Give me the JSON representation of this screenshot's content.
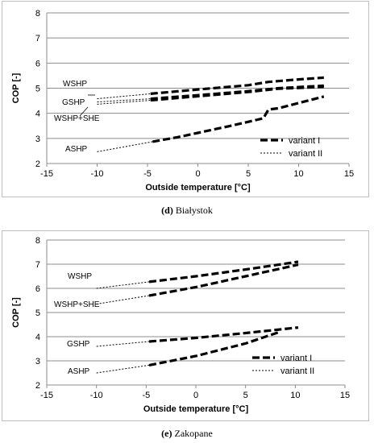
{
  "chart_data": [
    {
      "type": "line",
      "panel_letter": "(d)",
      "caption": "Białystok",
      "xlabel": "Outside temperature [°C]",
      "ylabel": "COP [-]",
      "xlim": [
        -15,
        15
      ],
      "ylim": [
        2,
        8
      ],
      "x_ticks": [
        -15,
        -10,
        -5,
        0,
        5,
        10,
        15
      ],
      "y_ticks": [
        2,
        3,
        4,
        5,
        6,
        7,
        8
      ],
      "grid": "horizontal",
      "legend": {
        "position": "bottom-right",
        "entries": [
          "variant I",
          "variant II"
        ]
      },
      "series": [
        {
          "name": "WSHP",
          "variant_I": [
            [
              -4.7,
              4.78
            ],
            [
              0,
              4.95
            ],
            [
              5,
              5.12
            ],
            [
              7,
              5.25
            ],
            [
              10,
              5.35
            ],
            [
              12.5,
              5.42
            ]
          ],
          "variant_II": [
            [
              -10,
              4.58
            ],
            [
              -4.7,
              4.78
            ]
          ]
        },
        {
          "name": "GSHP",
          "variant_I": [
            [
              -4.7,
              4.58
            ],
            [
              0,
              4.72
            ],
            [
              5,
              4.88
            ],
            [
              8,
              5.0
            ],
            [
              12.5,
              5.1
            ]
          ],
          "variant_II": [
            [
              -10,
              4.45
            ],
            [
              -4.7,
              4.58
            ]
          ]
        },
        {
          "name": "WSHP+SHE",
          "variant_I": [
            [
              -4.7,
              4.52
            ],
            [
              0,
              4.68
            ],
            [
              5,
              4.85
            ],
            [
              8,
              4.98
            ],
            [
              12.5,
              5.05
            ]
          ],
          "variant_II": [
            [
              -10,
              4.36
            ],
            [
              -4.7,
              4.52
            ]
          ]
        },
        {
          "name": "ASHP",
          "variant_I": [
            [
              -4.5,
              2.87
            ],
            [
              -2,
              3.05
            ],
            [
              0,
              3.22
            ],
            [
              3,
              3.48
            ],
            [
              6.5,
              3.8
            ],
            [
              7.0,
              4.15
            ],
            [
              8,
              4.2
            ],
            [
              12.5,
              4.67
            ]
          ],
          "variant_II": [
            [
              -10,
              2.47
            ],
            [
              -4.5,
              2.87
            ]
          ]
        }
      ]
    },
    {
      "type": "line",
      "panel_letter": "(e)",
      "caption": "Zakopane",
      "xlabel": "Outside temperature [°C]",
      "ylabel": "COP [-]",
      "xlim": [
        -15,
        15
      ],
      "ylim": [
        2,
        8
      ],
      "x_ticks": [
        -15,
        -10,
        -5,
        0,
        5,
        10,
        15
      ],
      "y_ticks": [
        2,
        3,
        4,
        5,
        6,
        7,
        8
      ],
      "grid": "horizontal",
      "legend": {
        "position": "bottom-right",
        "entries": [
          "variant I",
          "variant II"
        ]
      },
      "series": [
        {
          "name": "WSHP",
          "variant_I": [
            [
              -4.7,
              6.27
            ],
            [
              0,
              6.5
            ],
            [
              5,
              6.78
            ],
            [
              10.3,
              7.1
            ]
          ],
          "variant_II": [
            [
              -10,
              6.0
            ],
            [
              -4.7,
              6.27
            ]
          ]
        },
        {
          "name": "WSHP+SHE",
          "variant_I": [
            [
              -4.7,
              5.7
            ],
            [
              0,
              6.05
            ],
            [
              5,
              6.5
            ],
            [
              10.3,
              6.98
            ]
          ],
          "variant_II": [
            [
              -10,
              5.35
            ],
            [
              -4.7,
              5.7
            ]
          ]
        },
        {
          "name": "GSHP",
          "variant_I": [
            [
              -4.7,
              3.8
            ],
            [
              0,
              3.95
            ],
            [
              5,
              4.15
            ],
            [
              10.3,
              4.38
            ]
          ],
          "variant_II": [
            [
              -10,
              3.6
            ],
            [
              -4.7,
              3.8
            ]
          ]
        },
        {
          "name": "ASHP",
          "variant_I": [
            [
              -4.7,
              2.82
            ],
            [
              0,
              3.2
            ],
            [
              5,
              3.72
            ],
            [
              8.3,
              4.18
            ]
          ],
          "variant_II": [
            [
              -10,
              2.5
            ],
            [
              -4.7,
              2.82
            ]
          ]
        }
      ]
    }
  ]
}
